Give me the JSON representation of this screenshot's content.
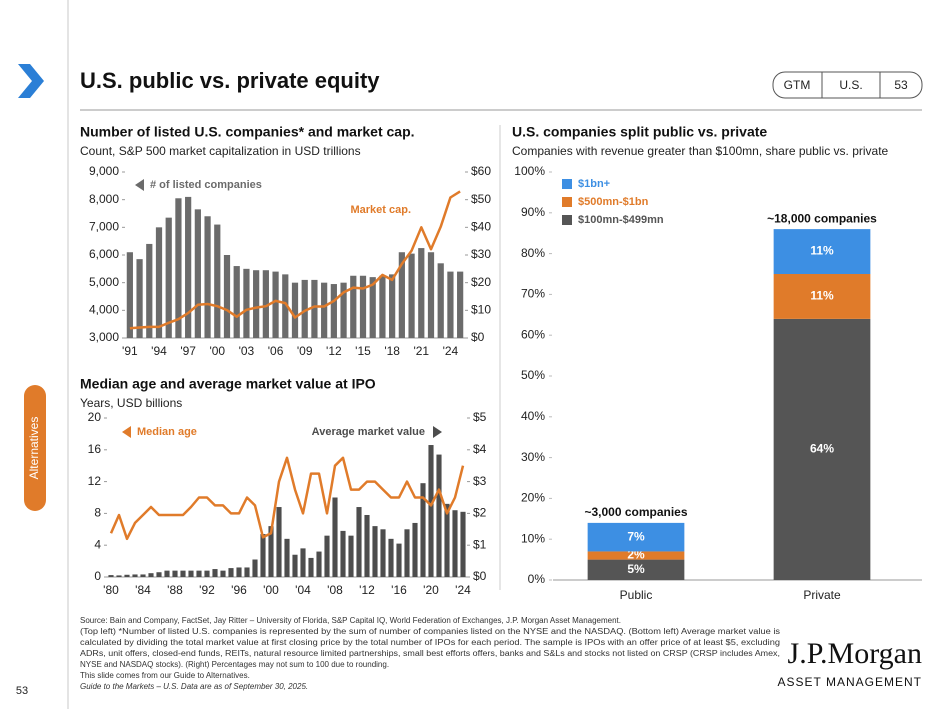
{
  "header": {
    "title": "U.S. public vs. private equity",
    "tabs": [
      "GTM",
      "U.S.",
      "53"
    ]
  },
  "sidebar": {
    "section": "Alternatives",
    "page": "53"
  },
  "footer": {
    "notes": [
      "Source: Bain and Company, FactSet, Jay Ritter – University of Florida, S&P Capital IQ, World Federation of Exchanges, J.P. Morgan Asset Management.",
      "(Top left) *Number of listed U.S. companies is represented by the sum of number of companies listed on the NYSE and the NASDAQ. (Bottom left) Average market value is",
      "calculated by dividing the total market value at first closing price by the total number of IPOs for each period. The sample is IPOs with an offer price of at least $5, excluding",
      "ADRs, unit offers, closed-end funds, REITs, natural resource limited partnerships, small best efforts offers, banks and S&Ls and stocks not listed on CRSP (CRSP includes Amex,",
      "NYSE and NASDAQ stocks). (Right) Percentages may not sum to 100 due to rounding.",
      "This slide comes from our Guide to Alternatives.",
      "Guide to the Markets – U.S. Data are as of September 30, 2025."
    ],
    "logo": "J.P.Morgan",
    "logo_sub": "ASSET MANAGEMENT"
  },
  "chart_data": [
    {
      "type": "combo",
      "title": "Number of listed U.S. companies* and market cap.",
      "subtitle": "Count, S&P 500 market capitalization in USD trillions",
      "categories": [
        "'91",
        null,
        null,
        "'94",
        null,
        null,
        "'97",
        null,
        null,
        "'00",
        null,
        null,
        "'03",
        null,
        null,
        "'06",
        null,
        null,
        "'09",
        null,
        null,
        "'12",
        null,
        null,
        "'15",
        null,
        null,
        "'18",
        null,
        null,
        "'21",
        null,
        null,
        "'24",
        null
      ],
      "series": [
        {
          "name": "# of listed companies",
          "color": "#6b6b6b",
          "values": [
            6100,
            5850,
            6400,
            7000,
            7350,
            8050,
            8100,
            7650,
            7400,
            7100,
            6000,
            5600,
            5500,
            5450,
            5450,
            5400,
            5300,
            5000,
            5100,
            5100,
            5000,
            4950,
            5000,
            5250,
            5250,
            5200,
            5250,
            5300,
            6100,
            6050,
            6250,
            6100,
            5700,
            5400,
            5400
          ]
        },
        {
          "name": "Market cap.",
          "color": "#e07b2a",
          "type": "line",
          "axis": "y2",
          "values": [
            3.5,
            3.8,
            4,
            4,
            5.5,
            6.8,
            9,
            12,
            12.3,
            11.5,
            10.1,
            7.7,
            10.2,
            11,
            11.5,
            13.4,
            12.6,
            7.4,
            9.8,
            11.4,
            11.4,
            13.4,
            16.5,
            18.2,
            17.9,
            19.3,
            22.8,
            21,
            26.8,
            31.6,
            40,
            32.1,
            40.2,
            50.8,
            53
          ]
        }
      ],
      "ylim": [
        3000,
        9000
      ],
      "yticks": [
        {
          "value": 3000,
          "label": "3,000"
        },
        {
          "value": 4000,
          "label": "4,000"
        },
        {
          "value": 5000,
          "label": "5,000"
        },
        {
          "value": 6000,
          "label": "6,000"
        },
        {
          "value": 7000,
          "label": "7,000"
        },
        {
          "value": 8000,
          "label": "8,000"
        },
        {
          "value": 9000,
          "label": "9,000"
        }
      ],
      "y2lim": [
        0,
        60
      ],
      "y2ticks": [
        {
          "value": 0,
          "label": "$0"
        },
        {
          "value": 10,
          "label": "$10"
        },
        {
          "value": 20,
          "label": "$20"
        },
        {
          "value": 30,
          "label": "$30"
        },
        {
          "value": 40,
          "label": "$40"
        },
        {
          "value": 50,
          "label": "$50"
        },
        {
          "value": 60,
          "label": "$60"
        }
      ],
      "grid": false
    },
    {
      "type": "combo",
      "title": "Median age and average market value at IPO",
      "subtitle": "Years, USD billions",
      "categories": [
        "'80",
        null,
        null,
        null,
        "'84",
        null,
        null,
        null,
        "'88",
        null,
        null,
        null,
        "'92",
        null,
        null,
        null,
        "'96",
        null,
        null,
        null,
        "'00",
        null,
        null,
        null,
        "'04",
        null,
        null,
        null,
        "'08",
        null,
        null,
        null,
        "'12",
        null,
        null,
        null,
        "'16",
        null,
        null,
        null,
        "'20",
        null,
        null,
        null,
        "'24"
      ],
      "series": [
        {
          "name": "Average market value",
          "color": "#4d4d4d",
          "axis": "y2",
          "values": [
            0.06,
            0.05,
            0.07,
            0.08,
            0.08,
            0.12,
            0.15,
            0.2,
            0.2,
            0.2,
            0.2,
            0.2,
            0.2,
            0.25,
            0.2,
            0.28,
            0.3,
            0.3,
            0.55,
            1.35,
            1.6,
            2.2,
            1.2,
            0.7,
            0.9,
            0.6,
            0.8,
            1.3,
            2.5,
            1.45,
            1.3,
            2.2,
            1.95,
            1.6,
            1.5,
            1.2,
            1.05,
            1.5,
            1.7,
            2.95,
            4.15,
            3.85,
            2.3,
            2.1,
            2.05
          ]
        },
        {
          "name": "Median age",
          "color": "#e07b2a",
          "type": "line",
          "values": [
            5.5,
            7.8,
            4.8,
            6.8,
            7.8,
            8.8,
            7.8,
            7.8,
            7.8,
            7.8,
            8.8,
            10,
            10,
            9,
            9,
            8,
            8,
            10,
            9,
            5,
            5.5,
            12,
            15,
            11,
            8,
            13,
            13,
            8,
            14,
            15,
            11,
            11,
            12,
            12,
            11,
            10,
            10,
            12,
            10,
            10,
            9,
            11,
            8,
            10,
            14
          ]
        }
      ],
      "ylim": [
        0,
        20
      ],
      "yticks": [
        0,
        4,
        8,
        12,
        16,
        20
      ],
      "y2lim": [
        0,
        5
      ],
      "y2ticks": [
        {
          "value": 0,
          "label": "$0"
        },
        {
          "value": 1,
          "label": "$1"
        },
        {
          "value": 2,
          "label": "$2"
        },
        {
          "value": 3,
          "label": "$3"
        },
        {
          "value": 4,
          "label": "$4"
        },
        {
          "value": 5,
          "label": "$5"
        }
      ],
      "grid": false
    },
    {
      "type": "stacked_bar",
      "title": "U.S. companies split public vs. private",
      "subtitle": "Companies with revenue greater than $100mn, share public vs. private",
      "categories": [
        "Public",
        "Private"
      ],
      "series": [
        {
          "name": "$100mn-$499mn",
          "color": "#555555",
          "values": [
            5,
            64
          ],
          "value_labels": [
            "5%",
            "64%"
          ]
        },
        {
          "name": "$500mn-$1bn",
          "color": "#e07b2a",
          "values": [
            2,
            11
          ],
          "value_labels": [
            "2%",
            "11%"
          ]
        },
        {
          "name": "$1bn+",
          "color": "#3d8fe3",
          "values": [
            7,
            11
          ],
          "value_labels": [
            "7%",
            "11%"
          ]
        }
      ],
      "annotations": [
        "~3,000 companies",
        "~18,000 companies"
      ],
      "ylim": [
        0,
        100
      ],
      "yticks": [
        {
          "value": 0,
          "label": "0%"
        },
        {
          "value": 10,
          "label": "10%"
        },
        {
          "value": 20,
          "label": "20%"
        },
        {
          "value": 30,
          "label": "30%"
        },
        {
          "value": 40,
          "label": "40%"
        },
        {
          "value": 50,
          "label": "50%"
        },
        {
          "value": 60,
          "label": "60%"
        },
        {
          "value": 70,
          "label": "70%"
        },
        {
          "value": 80,
          "label": "80%"
        },
        {
          "value": 90,
          "label": "90%"
        },
        {
          "value": 100,
          "label": "100%"
        }
      ],
      "grid": false
    }
  ]
}
